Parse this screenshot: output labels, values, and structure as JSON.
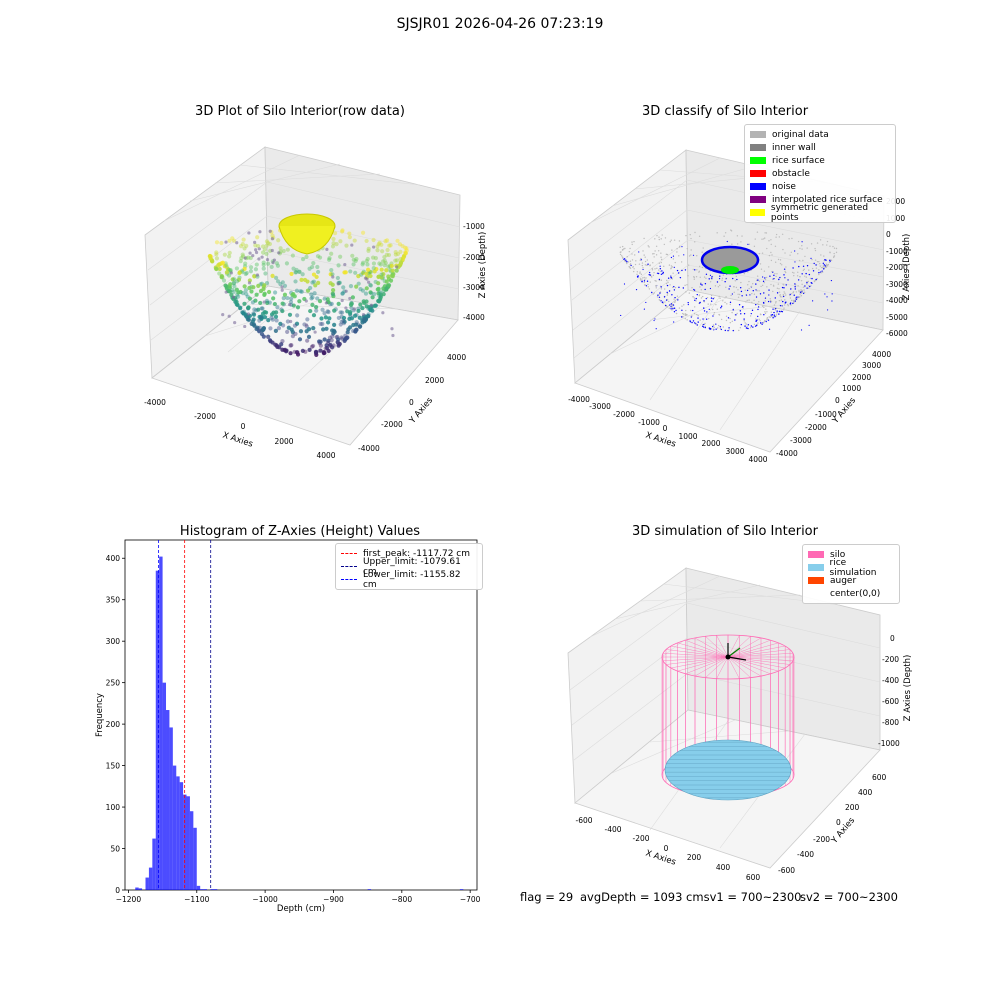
{
  "suptitle": "SJSJR01 2026-04-26 07:23:19",
  "panels": {
    "raw": {
      "title": "3D Plot of Silo Interior(row data)",
      "xlabel": "X Axies",
      "ylabel": "Y Axies",
      "zlabel": "Z Axies (Depth)",
      "xticks": [
        "-4000",
        "-2000",
        "0",
        "2000",
        "4000"
      ],
      "yticks": [
        "-4000",
        "-2000",
        "0",
        "2000",
        "4000"
      ],
      "zticks": [
        "-1000",
        "-2000",
        "-3000",
        "-4000"
      ]
    },
    "classify": {
      "title": "3D classify of Silo Interior",
      "xlabel": "X Axies",
      "ylabel": "Y Axies",
      "zlabel": "Z Axies (Depth)",
      "xticks": [
        "-4000",
        "-3000",
        "-2000",
        "-1000",
        "0",
        "1000",
        "2000",
        "3000",
        "4000"
      ],
      "yticks": [
        "-4000",
        "-3000",
        "-2000",
        "-1000",
        "0",
        "1000",
        "2000",
        "3000",
        "4000"
      ],
      "zticks": [
        "2000",
        "1000",
        "0",
        "-1000",
        "-2000",
        "-3000",
        "-4000",
        "-5000",
        "-6000"
      ],
      "legend": [
        {
          "label": "original data",
          "color": "#b3b3b3"
        },
        {
          "label": "inner wall",
          "color": "#808080"
        },
        {
          "label": "rice surface",
          "color": "#00ff00"
        },
        {
          "label": "obstacle",
          "color": "#ff0000"
        },
        {
          "label": "noise",
          "color": "#0000ff"
        },
        {
          "label": "interpolated rice surface",
          "color": "#800080"
        },
        {
          "label": "symmetric generated points",
          "color": "#ffff00"
        }
      ]
    },
    "hist": {
      "title": "Histogram of Z-Axies (Height) Values",
      "xlabel": "Depth (cm)",
      "ylabel": "Frequency",
      "xticks": [
        "-1200",
        "-1100",
        "-1000",
        "-900",
        "-800",
        "-700"
      ],
      "yticks": [
        "0",
        "50",
        "100",
        "150",
        "200",
        "250",
        "300",
        "350",
        "400"
      ],
      "legend": [
        {
          "label": "first_peak: -1117.72 cm",
          "color": "#ff0000"
        },
        {
          "label": "Upper_limit: -1079.61 cm",
          "color": "#00008b"
        },
        {
          "label": "Lower_limit: -1155.82 cm",
          "color": "#0000ff"
        }
      ]
    },
    "sim": {
      "title": "3D simulation of Silo Interior",
      "xlabel": "X Axies",
      "ylabel": "Y Axies",
      "zlabel": "Z Axies (Depth)",
      "xticks": [
        "-600",
        "-400",
        "-200",
        "0",
        "200",
        "400",
        "600"
      ],
      "yticks": [
        "-600",
        "-400",
        "-200",
        "0",
        "200",
        "400",
        "600"
      ],
      "zticks": [
        "0",
        "-200",
        "-400",
        "-600",
        "-800",
        "-1000"
      ],
      "legend": [
        {
          "label": "silo",
          "color": "#ff69b4"
        },
        {
          "label": "rice simulation",
          "color": "#87ceeb"
        },
        {
          "label": "auger",
          "color": "#ff4500"
        },
        {
          "label": "center(0,0)",
          "color": ""
        }
      ],
      "footer": {
        "flag": "flag = 29",
        "avg": "avgDepth = 1093 cmsv1 = 700~2300",
        "sv2": "sv2 = 700~2300"
      }
    }
  },
  "chart_data": [
    {
      "type": "scatter",
      "title": "3D Plot of Silo Interior(row data)",
      "xlabel": "X Axies",
      "ylabel": "Y Axies",
      "zlabel": "Z Axies (Depth)",
      "xlim": [
        -4500,
        4500
      ],
      "ylim": [
        -4500,
        4500
      ],
      "zlim": [
        -4800,
        -500
      ],
      "series": []
    },
    {
      "type": "scatter",
      "title": "3D classify of Silo Interior",
      "xlabel": "X Axies",
      "ylabel": "Y Axies",
      "zlabel": "Z Axies (Depth)",
      "xlim": [
        -4000,
        4000
      ],
      "ylim": [
        -4000,
        4000
      ],
      "zlim": [
        -6500,
        2500
      ],
      "series": [
        {
          "name": "original data"
        },
        {
          "name": "inner wall"
        },
        {
          "name": "rice surface"
        },
        {
          "name": "obstacle"
        },
        {
          "name": "noise"
        },
        {
          "name": "interpolated rice surface"
        },
        {
          "name": "symmetric generated points"
        }
      ]
    },
    {
      "type": "bar",
      "title": "Histogram of Z-Axies (Height) Values",
      "xlabel": "Depth (cm)",
      "ylabel": "Frequency",
      "xlim": [
        -1205,
        -690
      ],
      "ylim": [
        0,
        422
      ],
      "bin_edges": [
        -1190,
        -1185,
        -1180,
        -1175,
        -1170,
        -1165,
        -1160,
        -1155,
        -1150,
        -1145,
        -1140,
        -1135,
        -1130,
        -1125,
        -1120,
        -1115,
        -1110,
        -1105,
        -1100,
        -1095,
        -1090,
        -1085,
        -1080,
        -1075,
        -1070,
        -1065,
        -1060,
        -1055,
        -1050,
        -1045,
        -1040,
        -1035,
        -1030,
        -1025,
        -1020,
        -1015,
        -1010,
        -1005,
        -1000,
        -995,
        -990,
        -985,
        -980,
        -975,
        -970,
        -965,
        -960,
        -955,
        -950,
        -945,
        -940,
        -935,
        -930,
        -925,
        -920,
        -915,
        -910,
        -905,
        -900,
        -895,
        -890,
        -885,
        -880,
        -875,
        -870,
        -865,
        -860,
        -855,
        -850,
        -845,
        -840,
        -835,
        -830,
        -825,
        -820,
        -815,
        -810,
        -805,
        -800,
        -795,
        -790,
        -785,
        -780,
        -775,
        -770,
        -765,
        -760,
        -755,
        -750,
        -745,
        -740,
        -735,
        -730,
        -725,
        -720,
        -715,
        -710
      ],
      "counts": [
        3,
        2,
        0,
        15,
        27,
        62,
        385,
        402,
        250,
        217,
        196,
        150,
        137,
        130,
        115,
        113,
        95,
        75,
        5,
        1,
        1,
        0,
        1,
        1,
        0,
        0,
        0,
        0,
        0,
        0,
        0,
        0,
        0,
        0,
        0,
        0,
        0,
        0,
        0,
        0,
        0,
        0,
        0,
        0,
        0,
        0,
        0,
        0,
        0,
        0,
        0,
        0,
        0,
        0,
        0,
        0,
        0,
        0,
        0,
        0,
        0,
        0,
        0,
        0,
        0,
        0,
        0,
        0,
        1,
        0,
        0,
        0,
        0,
        0,
        0,
        0,
        0,
        0,
        0,
        0,
        0,
        0,
        0,
        0,
        0,
        0,
        0,
        0,
        0,
        0,
        0,
        0,
        0,
        0,
        0,
        1
      ],
      "vlines": [
        {
          "name": "first_peak",
          "x": -1117.72,
          "color": "#ff0000"
        },
        {
          "name": "Upper_limit",
          "x": -1079.61,
          "color": "#00008b"
        },
        {
          "name": "Lower_limit",
          "x": -1155.82,
          "color": "#0000ff"
        }
      ]
    },
    {
      "type": "scatter",
      "title": "3D simulation of Silo Interior",
      "xlabel": "X Axies",
      "ylabel": "Y Axies",
      "zlabel": "Z Axies (Depth)",
      "xlim": [
        -650,
        650
      ],
      "ylim": [
        -650,
        650
      ],
      "zlim": [
        -1200,
        100
      ],
      "silo_radius": 500,
      "silo_top": 0,
      "silo_bottom": -1100,
      "rice_depth": -1093,
      "series": [
        {
          "name": "silo"
        },
        {
          "name": "rice simulation"
        },
        {
          "name": "auger"
        },
        {
          "name": "center(0,0)"
        }
      ]
    }
  ]
}
